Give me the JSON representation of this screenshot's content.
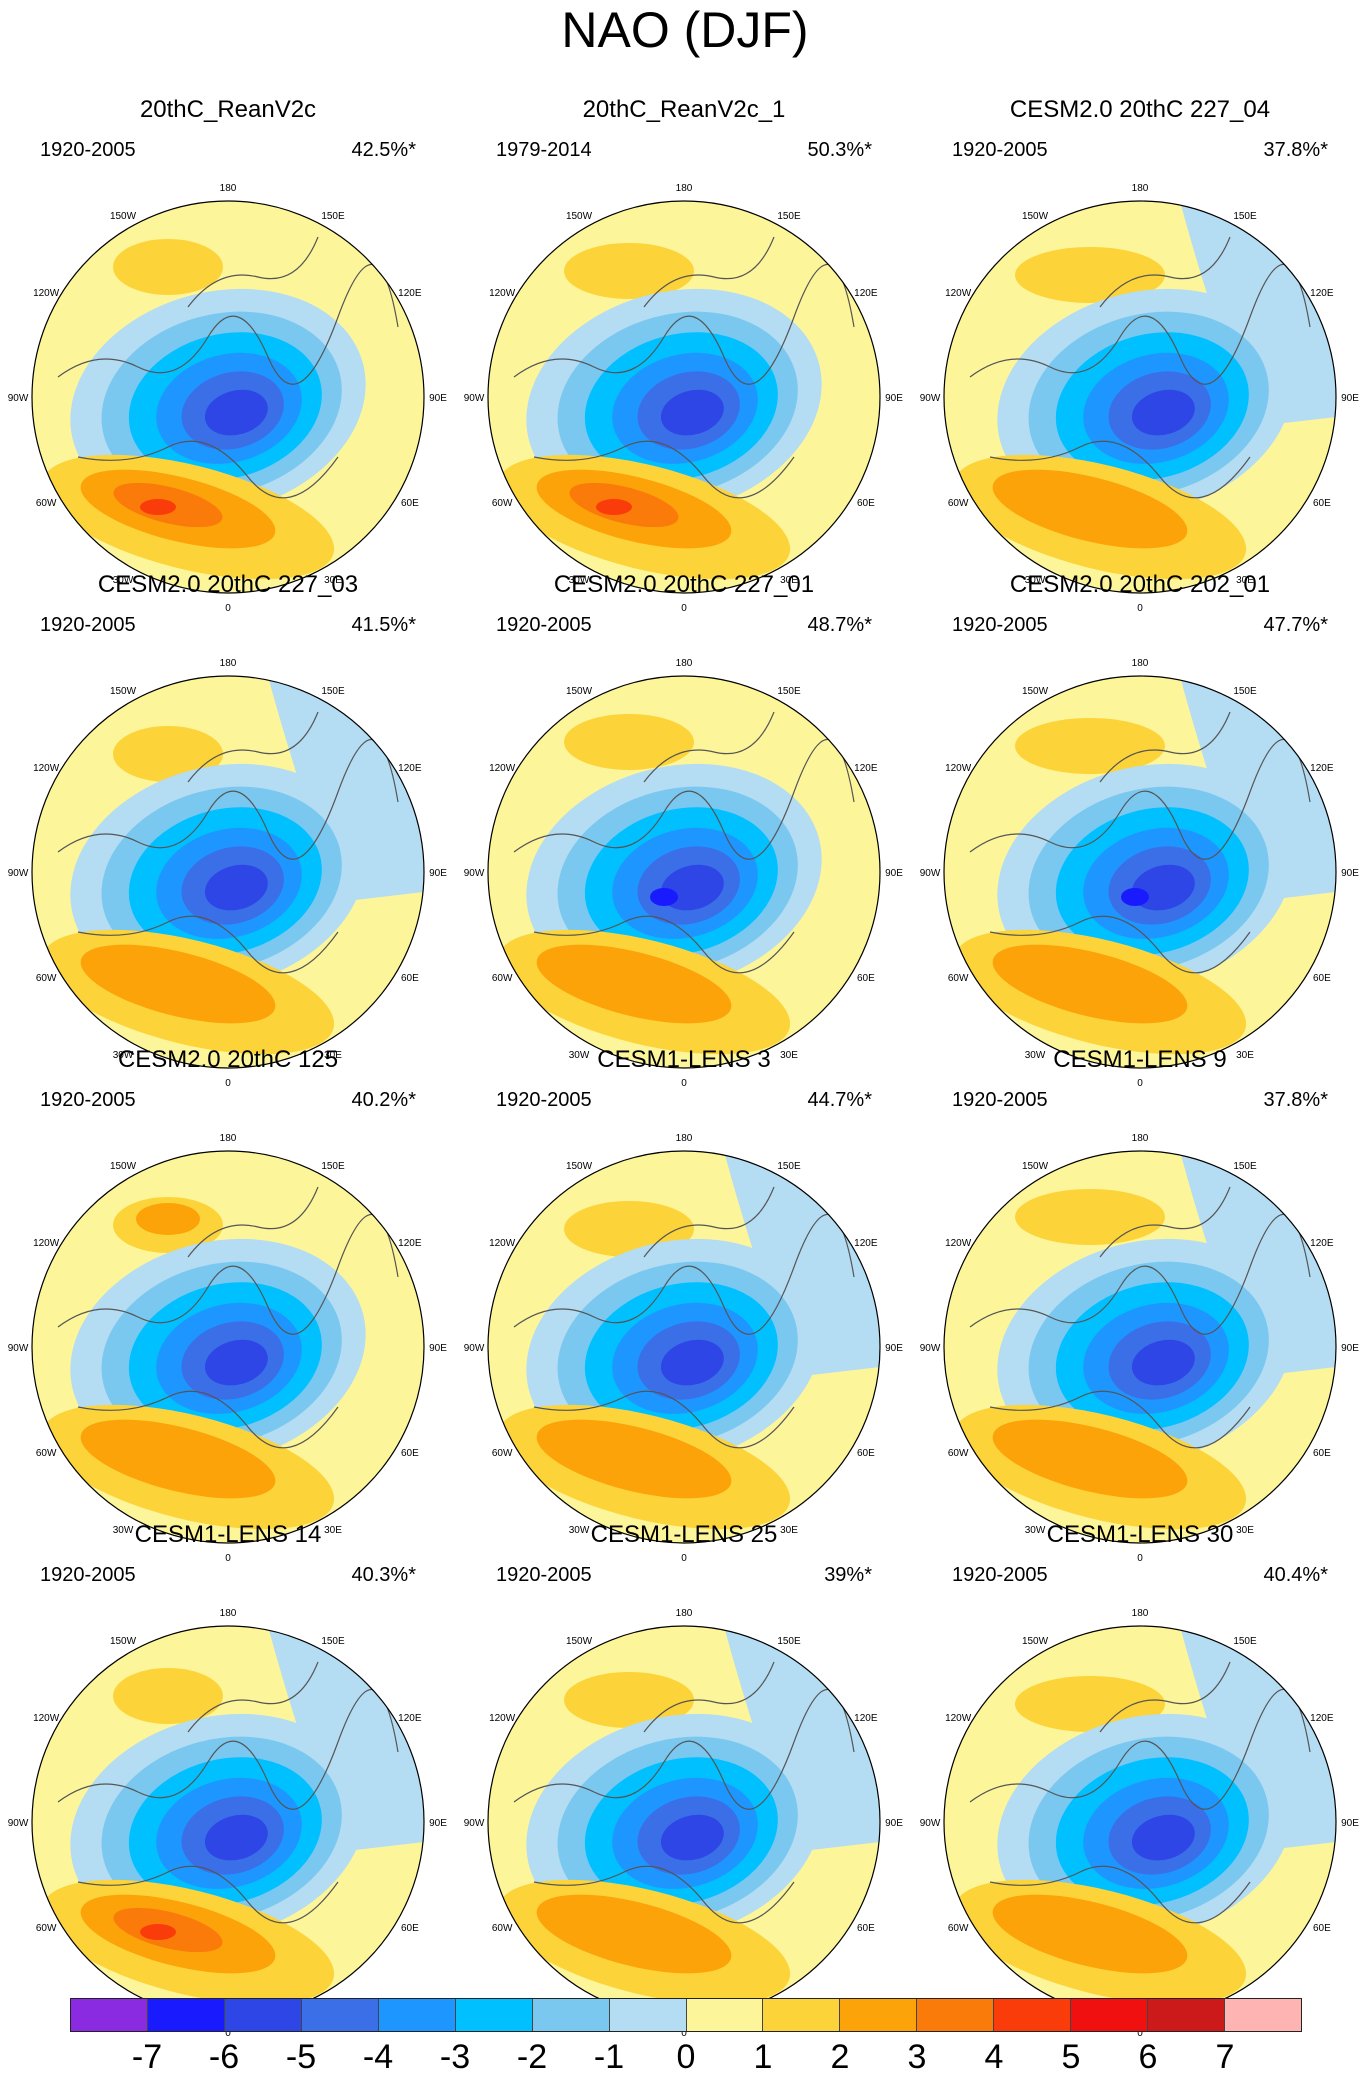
{
  "title": "NAO (DJF)",
  "lon_labels": [
    "180",
    "150E",
    "120E",
    "90E",
    "60E",
    "30E",
    "0",
    "30W",
    "60W",
    "90W",
    "120W",
    "150W"
  ],
  "palette": [
    "#8a2be2",
    "#1a1aff",
    "#2e46e6",
    "#3a6fe8",
    "#1e96ff",
    "#00c0ff",
    "#7ac8f0",
    "#b4dcf2",
    "#fdf59a",
    "#fcd43a",
    "#fca30a",
    "#fa7a0a",
    "#fa3c0a",
    "#f01010",
    "#cc1a1a",
    "#ffb4b4"
  ],
  "panels": [
    {
      "title": "20thC_ReanV2c",
      "period": "1920-2005",
      "pct": "42.5%*"
    },
    {
      "title": "20thC_ReanV2c_1",
      "period": "1979-2014",
      "pct": "50.3%*"
    },
    {
      "title": "CESM2.0 20thC 227_04",
      "period": "1920-2005",
      "pct": "37.8%*"
    },
    {
      "title": "CESM2.0 20thC 227_03",
      "period": "1920-2005",
      "pct": "41.5%*"
    },
    {
      "title": "CESM2.0 20thC 227_01",
      "period": "1920-2005",
      "pct": "48.7%*"
    },
    {
      "title": "CESM2.0 20thC 202_01",
      "period": "1920-2005",
      "pct": "47.7%*"
    },
    {
      "title": "CESM2.0 20thC 125",
      "period": "1920-2005",
      "pct": "40.2%*"
    },
    {
      "title": "CESM1-LENS 3",
      "period": "1920-2005",
      "pct": "44.7%*"
    },
    {
      "title": "CESM1-LENS 9",
      "period": "1920-2005",
      "pct": "37.8%*"
    },
    {
      "title": "CESM1-LENS 14",
      "period": "1920-2005",
      "pct": "40.3%*"
    },
    {
      "title": "CESM1-LENS 25",
      "period": "1920-2005",
      "pct": "39%*"
    },
    {
      "title": "CESM1-LENS 30",
      "period": "1920-2005",
      "pct": "40.4%*"
    }
  ],
  "colorbar": {
    "ticks": [
      "-7",
      "-6",
      "-5",
      "-4",
      "-3",
      "-2",
      "-1",
      "0",
      "1",
      "2",
      "3",
      "4",
      "5",
      "6",
      "7"
    ]
  }
}
